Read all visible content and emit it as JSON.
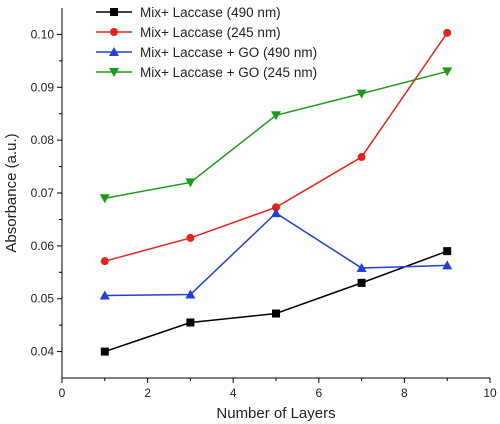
{
  "chart_data": {
    "type": "line",
    "title": "",
    "xlabel": "Number of Layers",
    "ylabel": "Absorbance (a.u.)",
    "xlim": [
      0,
      10
    ],
    "ylim": [
      0.035,
      0.105
    ],
    "x_ticks": [
      0,
      2,
      4,
      6,
      8,
      10
    ],
    "x_tick_labels": [
      "0",
      "2",
      "4",
      "6",
      "8",
      "10"
    ],
    "y_ticks": [
      0.04,
      0.05,
      0.06,
      0.07,
      0.08,
      0.09,
      0.1
    ],
    "y_tick_labels": [
      "0.04",
      "0.05",
      "0.06",
      "0.07",
      "0.08",
      "0.09",
      "0.10"
    ],
    "grid": false,
    "legend_position": "top-left",
    "x": [
      1,
      3,
      5,
      7,
      9
    ],
    "series": [
      {
        "name": "Mix+ Laccase (490 nm)",
        "values": [
          0.04,
          0.0455,
          0.0472,
          0.053,
          0.059
        ],
        "color": "#000000",
        "marker": "square"
      },
      {
        "name": "Mix+ Laccase (245 nm)",
        "values": [
          0.0571,
          0.0615,
          0.0673,
          0.0768,
          0.1003
        ],
        "color": "#e8221a",
        "marker": "circle"
      },
      {
        "name": "Mix+ Laccase + GO (490 nm)",
        "values": [
          0.0506,
          0.0508,
          0.0662,
          0.0558,
          0.0563
        ],
        "color": "#2140d4",
        "marker": "triangle-up"
      },
      {
        "name": "Mix+ Laccase + GO (245 nm)",
        "values": [
          0.069,
          0.072,
          0.0847,
          0.0888,
          0.093
        ],
        "color": "#1a9b1a",
        "marker": "triangle-down"
      }
    ]
  }
}
